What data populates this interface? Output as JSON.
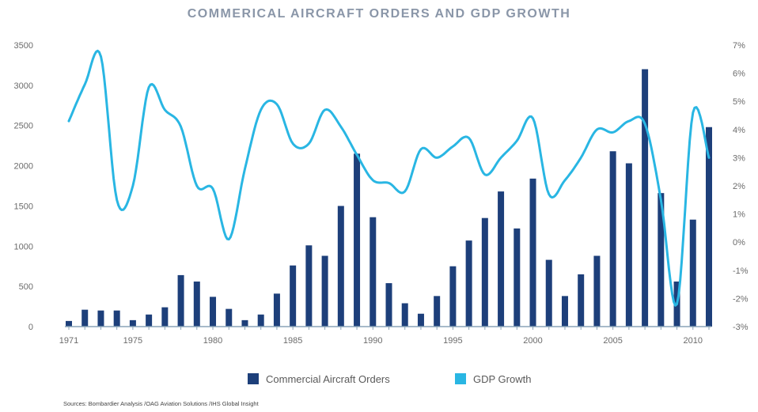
{
  "chart_data": {
    "type": "bar",
    "title": "COMMERICAL AIRCRAFT ORDERS AND GDP GROWTH",
    "source": "Sources: Bombardier Analysis /OAG Aviation Solutions /IHS Global Insight",
    "x": [
      1971,
      1972,
      1973,
      1974,
      1975,
      1976,
      1977,
      1978,
      1979,
      1980,
      1981,
      1982,
      1983,
      1984,
      1985,
      1986,
      1987,
      1988,
      1989,
      1990,
      1991,
      1992,
      1993,
      1994,
      1995,
      1996,
      1997,
      1998,
      1999,
      2000,
      2001,
      2002,
      2003,
      2004,
      2005,
      2006,
      2007,
      2008,
      2009,
      2010,
      2011
    ],
    "x_tick_labels": [
      "1971",
      "1975",
      "1980",
      "1985",
      "1990",
      "1995",
      "2000",
      "2005",
      "2010"
    ],
    "y_left_ticks": [
      "0",
      "500",
      "1000",
      "1500",
      "2000",
      "2500",
      "3000",
      "3500"
    ],
    "y_right_ticks": [
      "-3%",
      "-2%",
      "-1%",
      "0%",
      "1%",
      "2%",
      "3%",
      "4%",
      "5%",
      "6%",
      "7%"
    ],
    "ylim_left": [
      0,
      3500
    ],
    "ylim_right": [
      -3,
      7
    ],
    "grid": false,
    "legend_position": "bottom",
    "series": [
      {
        "name": "Commercial Aircraft Orders",
        "type": "bar",
        "axis": "left",
        "color": "#1d3f7a",
        "values": [
          70,
          210,
          200,
          200,
          80,
          150,
          240,
          640,
          560,
          370,
          220,
          80,
          150,
          410,
          760,
          1010,
          880,
          1500,
          2150,
          1360,
          540,
          290,
          160,
          380,
          750,
          1070,
          1350,
          1680,
          1220,
          1840,
          830,
          380,
          650,
          880,
          2180,
          2030,
          3200,
          1660,
          560,
          1330,
          2480
        ]
      },
      {
        "name": "GDP Growth",
        "type": "line",
        "axis": "right",
        "color": "#29b6e3",
        "values": [
          4.3,
          5.6,
          6.6,
          1.5,
          2.0,
          5.5,
          4.7,
          4.1,
          2.0,
          1.9,
          0.1,
          2.6,
          4.7,
          4.9,
          3.5,
          3.5,
          4.7,
          4.1,
          3.1,
          2.2,
          2.1,
          1.8,
          3.3,
          3.0,
          3.4,
          3.7,
          2.4,
          3.0,
          3.6,
          4.4,
          1.7,
          2.2,
          3.0,
          4.0,
          3.9,
          4.3,
          4.2,
          1.5,
          -2.2,
          4.6,
          3.0
        ]
      }
    ]
  }
}
